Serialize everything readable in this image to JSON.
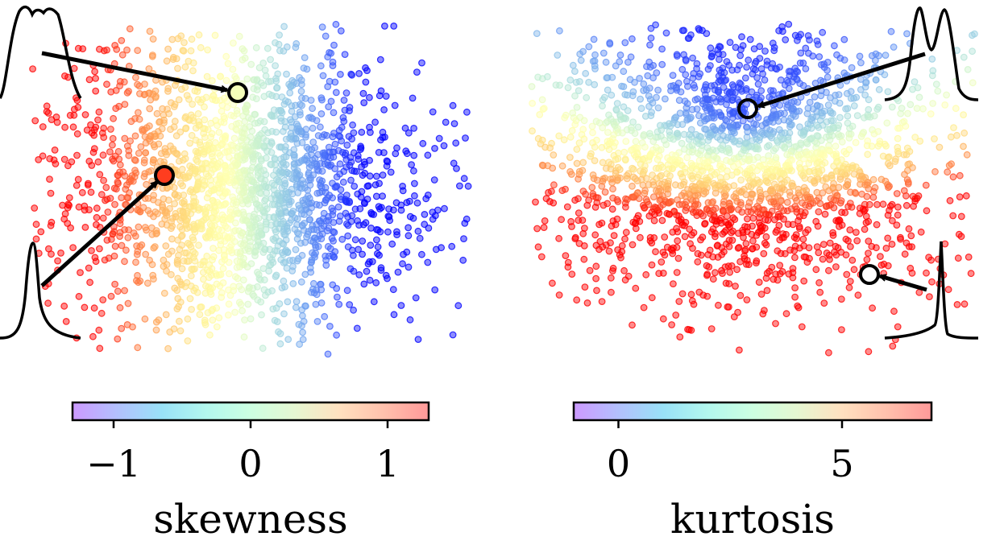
{
  "chart_data": [
    {
      "type": "scatter",
      "colorbar": {
        "label": "skewness",
        "range": [
          -1.3,
          1.3
        ],
        "ticks": [
          -1,
          0,
          1
        ],
        "tick_labels": [
          "−1",
          "0",
          "1"
        ],
        "colormap": "rainbow"
      },
      "point_count_estimate": 2200,
      "highlighted_points": [
        {
          "color_value": -0.05,
          "inset": "top-left",
          "inset_shape": "flat-topped"
        },
        {
          "color_value": 1.1,
          "inset": "bottom-left",
          "inset_shape": "right-skewed peak"
        }
      ],
      "grid": false,
      "axes_visible": false
    },
    {
      "type": "scatter",
      "colorbar": {
        "label": "kurtosis",
        "range": [
          -1,
          7
        ],
        "ticks": [
          0,
          5
        ],
        "tick_labels": [
          "0",
          "5"
        ],
        "colormap": "rainbow"
      },
      "point_count_estimate": 2200,
      "highlighted_points": [
        {
          "color_value": -0.3,
          "inset": "top-right",
          "inset_shape": "bimodal"
        },
        {
          "color_value": 7.0,
          "inset": "bottom-right",
          "inset_shape": "sharp peak"
        }
      ],
      "grid": false,
      "axes_visible": false
    }
  ]
}
